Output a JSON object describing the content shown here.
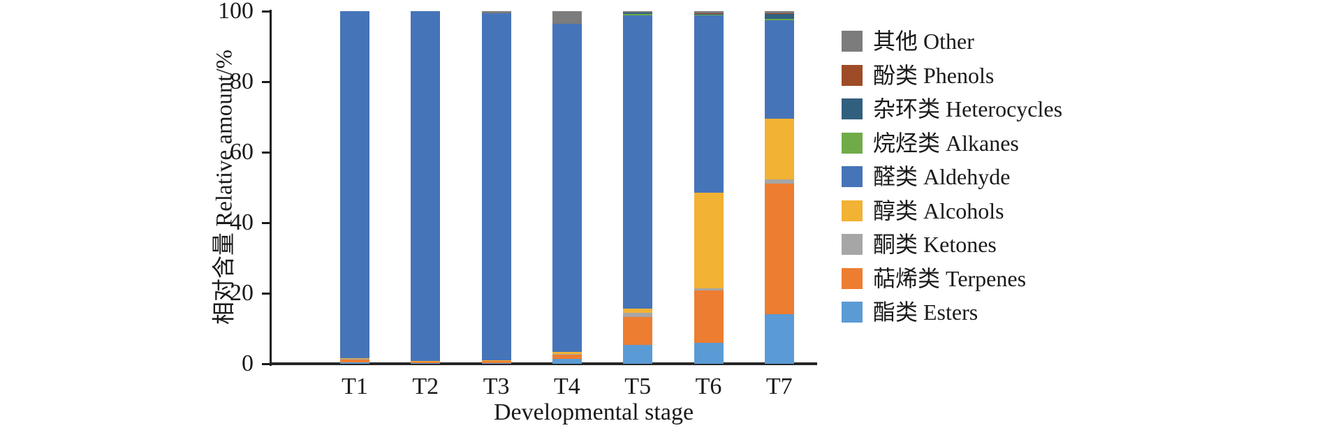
{
  "figure": {
    "y_axis_label": "相对含量 Relative amount/%",
    "x_axis_label": "Developmental stage"
  },
  "chart_data": {
    "type": "bar",
    "stacked": true,
    "title": "",
    "xlabel": "Developmental stage",
    "ylabel": "相对含量 Relative amount/%",
    "ylim": [
      0,
      100
    ],
    "y_ticks": [
      0,
      20,
      40,
      60,
      80,
      100
    ],
    "grid": false,
    "legend_position": "right",
    "legend_order": "reverse-of-stack (top legend entry = topmost segment)",
    "categories": [
      "T1",
      "T2",
      "T3",
      "T4",
      "T5",
      "T6",
      "T7"
    ],
    "series": [
      {
        "name": "酯类 Esters",
        "color": "#5b9bd5",
        "values": [
          0.3,
          0.2,
          0.2,
          1.4,
          5.3,
          6.0,
          14.0
        ]
      },
      {
        "name": "萜烯类 Terpenes",
        "color": "#ed7d31",
        "values": [
          1.0,
          0.4,
          0.6,
          1.2,
          7.9,
          14.8,
          37.0
        ]
      },
      {
        "name": "酮类 Ketones",
        "color": "#a6a6a6",
        "values": [
          0.1,
          0.1,
          0.1,
          0.2,
          1.2,
          0.5,
          1.2
        ]
      },
      {
        "name": "醇类 Alcohols",
        "color": "#f2b234",
        "values": [
          0.1,
          0.1,
          0.1,
          0.6,
          1.2,
          27.3,
          17.4
        ]
      },
      {
        "name": "醛类 Aldehyde",
        "color": "#4674b8",
        "values": [
          98.5,
          99.2,
          98.4,
          93.0,
          83.3,
          50.4,
          27.9
        ]
      },
      {
        "name": "烷烃类 Alkanes",
        "color": "#6fac47",
        "values": [
          0,
          0,
          0,
          0,
          0.4,
          0.1,
          0.4
        ]
      },
      {
        "name": "杂环类 Heterocycles",
        "color": "#31607f",
        "values": [
          0,
          0,
          0,
          0,
          0.4,
          0.2,
          1.4
        ]
      },
      {
        "name": "酚类 Phenols",
        "color": "#9e4b28",
        "values": [
          0,
          0,
          0,
          0,
          0,
          0.1,
          0.2
        ]
      },
      {
        "name": "其他 Other",
        "color": "#7c7c7c",
        "values": [
          0,
          0,
          0.6,
          3.6,
          0.3,
          0.6,
          0.5
        ]
      }
    ]
  }
}
